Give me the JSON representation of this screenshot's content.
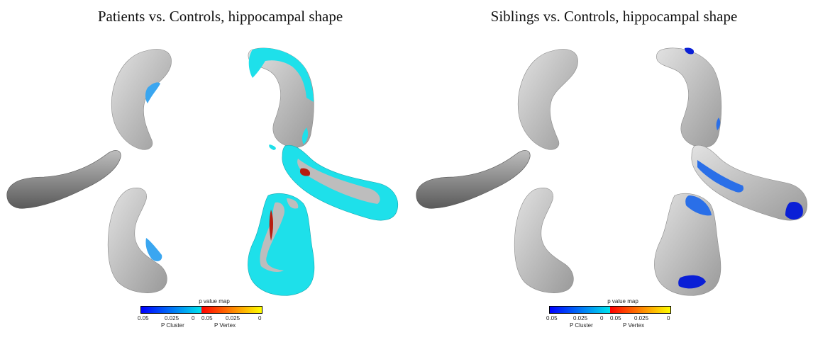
{
  "panels": [
    {
      "title": "Patients vs. Controls, hippocampal shape",
      "legend": {
        "title": "p value map",
        "ticks": [
          "0.05",
          "0.025",
          "0",
          "0.05",
          "0.025",
          "0"
        ],
        "cluster_label": "P Cluster",
        "vertex_label": "P Vertex"
      }
    },
    {
      "title": "Siblings vs. Controls, hippocampal shape",
      "legend": {
        "title": "p value map",
        "ticks": [
          "0.05",
          "0.025",
          "0",
          "0.05",
          "0.025",
          "0"
        ],
        "cluster_label": "P Cluster",
        "vertex_label": "P Vertex"
      }
    }
  ],
  "colors": {
    "surface": "#c6c6c6",
    "cluster_low": "#0000ff",
    "cluster_high": "#00e5ee",
    "vertex_low": "#ff0000",
    "vertex_high": "#ffff00",
    "cyan_region": "#1ee0ea",
    "blue_region": "#2a6fe8",
    "deep_blue_region": "#0a1fd6",
    "red_region": "#b81c10"
  }
}
